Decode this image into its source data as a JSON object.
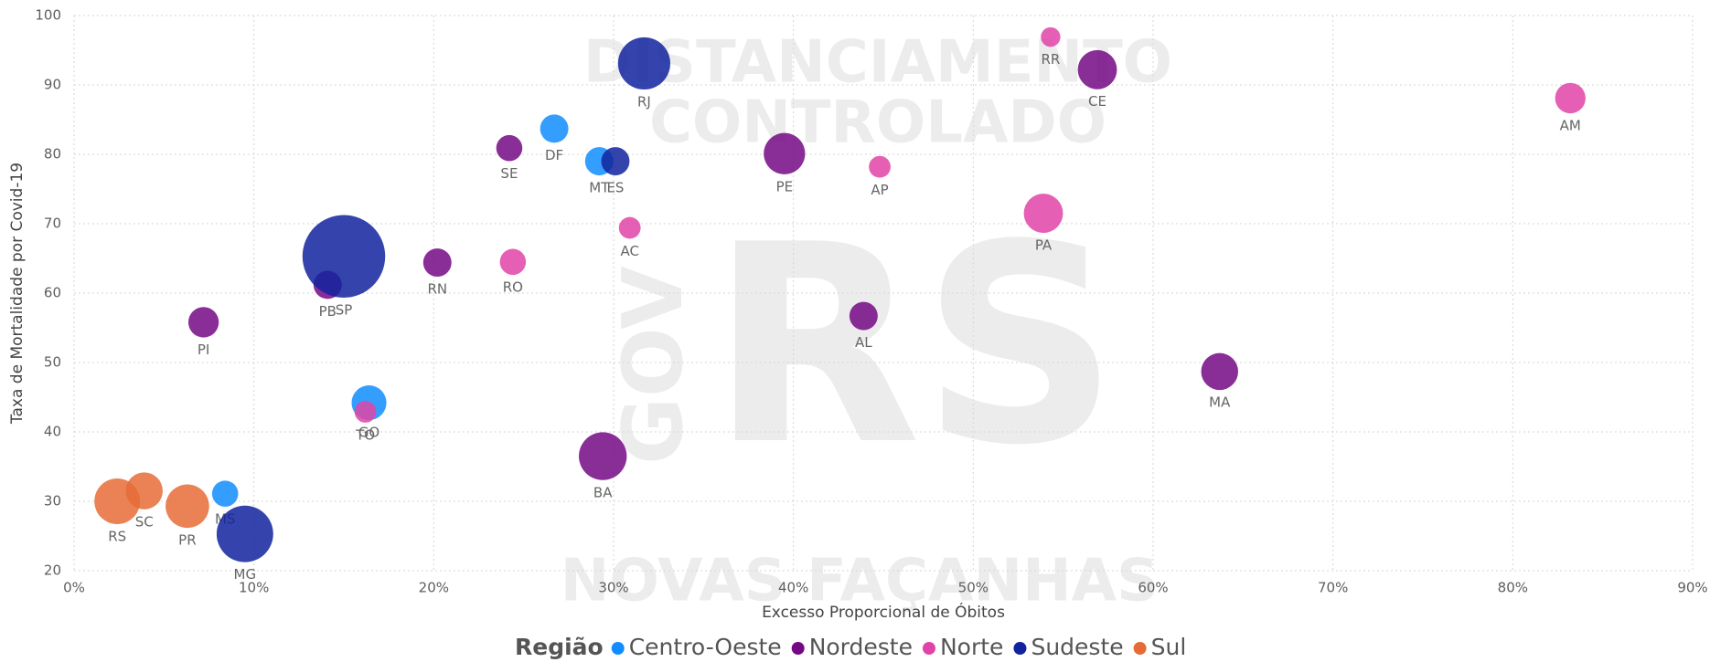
{
  "chart_data": {
    "type": "bubble",
    "x_label": "Excesso Proporcional de Óbitos",
    "y_label": "Taxa de Mortalidade por Covid-19",
    "legend_title": "Região",
    "watermark": [
      "DISTANCIAMENTO",
      "CONTROLADO",
      "RS",
      "GOV",
      "NOVAS FAÇANHAS"
    ],
    "xlim": [
      0,
      90
    ],
    "ylim": [
      20,
      100
    ],
    "xticks": [
      {
        "value": 0,
        "label": "0%"
      },
      {
        "value": 10,
        "label": "10%"
      },
      {
        "value": 20,
        "label": "20%"
      },
      {
        "value": 30,
        "label": "30%"
      },
      {
        "value": 40,
        "label": "40%"
      },
      {
        "value": 50,
        "label": "50%"
      },
      {
        "value": 60,
        "label": "60%"
      },
      {
        "value": 70,
        "label": "70%"
      },
      {
        "value": 80,
        "label": "80%"
      },
      {
        "value": 90,
        "label": "90%"
      }
    ],
    "yticks": [
      20,
      30,
      40,
      50,
      60,
      70,
      80,
      90,
      100
    ],
    "grid": true,
    "series": [
      {
        "name": "Centro-Oeste",
        "color": "#118DFF",
        "labels": [
          "DF",
          "MT",
          "GO",
          "MS"
        ],
        "x": [
          26.7,
          29.2,
          16.4,
          8.4
        ],
        "y": [
          83.7,
          79.0,
          44.2,
          31.1
        ],
        "size": [
          169,
          169,
          256,
          144
        ]
      },
      {
        "name": "Nordeste",
        "color": "#750985",
        "labels": [
          "CE",
          "SE",
          "PE",
          "PB",
          "RN",
          "PI",
          "AL",
          "MA",
          "BA"
        ],
        "x": [
          56.9,
          24.2,
          39.5,
          14.1,
          20.2,
          7.2,
          43.9,
          63.7,
          29.4
        ],
        "y": [
          92.2,
          80.9,
          80.1,
          61.2,
          64.4,
          55.8,
          56.7,
          48.7,
          36.5
        ],
        "size": [
          324,
          144,
          361,
          169,
          169,
          196,
          169,
          289,
          484
        ]
      },
      {
        "name": "Norte",
        "color": "#E044A7",
        "labels": [
          "RR",
          "AM",
          "AP",
          "AC",
          "PA",
          "RO",
          "TO"
        ],
        "x": [
          54.3,
          83.2,
          44.8,
          30.9,
          53.9,
          24.4,
          16.2
        ],
        "y": [
          96.9,
          88.1,
          78.2,
          69.4,
          71.5,
          64.5,
          42.9
        ],
        "size": [
          81,
          196,
          100,
          100,
          324,
          144,
          100
        ]
      },
      {
        "name": "Sudeste",
        "color": "#12239E",
        "labels": [
          "RJ",
          "ES",
          "SP",
          "MG"
        ],
        "x": [
          31.7,
          30.1,
          15.0,
          9.5
        ],
        "y": [
          93.1,
          79.0,
          65.3,
          25.3
        ],
        "size": [
          576,
          169,
          1444,
          676
        ]
      },
      {
        "name": "Sul",
        "color": "#E66C37",
        "labels": [
          "RS",
          "SC",
          "PR"
        ],
        "x": [
          2.4,
          3.9,
          6.3
        ],
        "y": [
          30.0,
          31.5,
          29.3
        ],
        "size": [
          441,
          289,
          400
        ]
      }
    ]
  }
}
